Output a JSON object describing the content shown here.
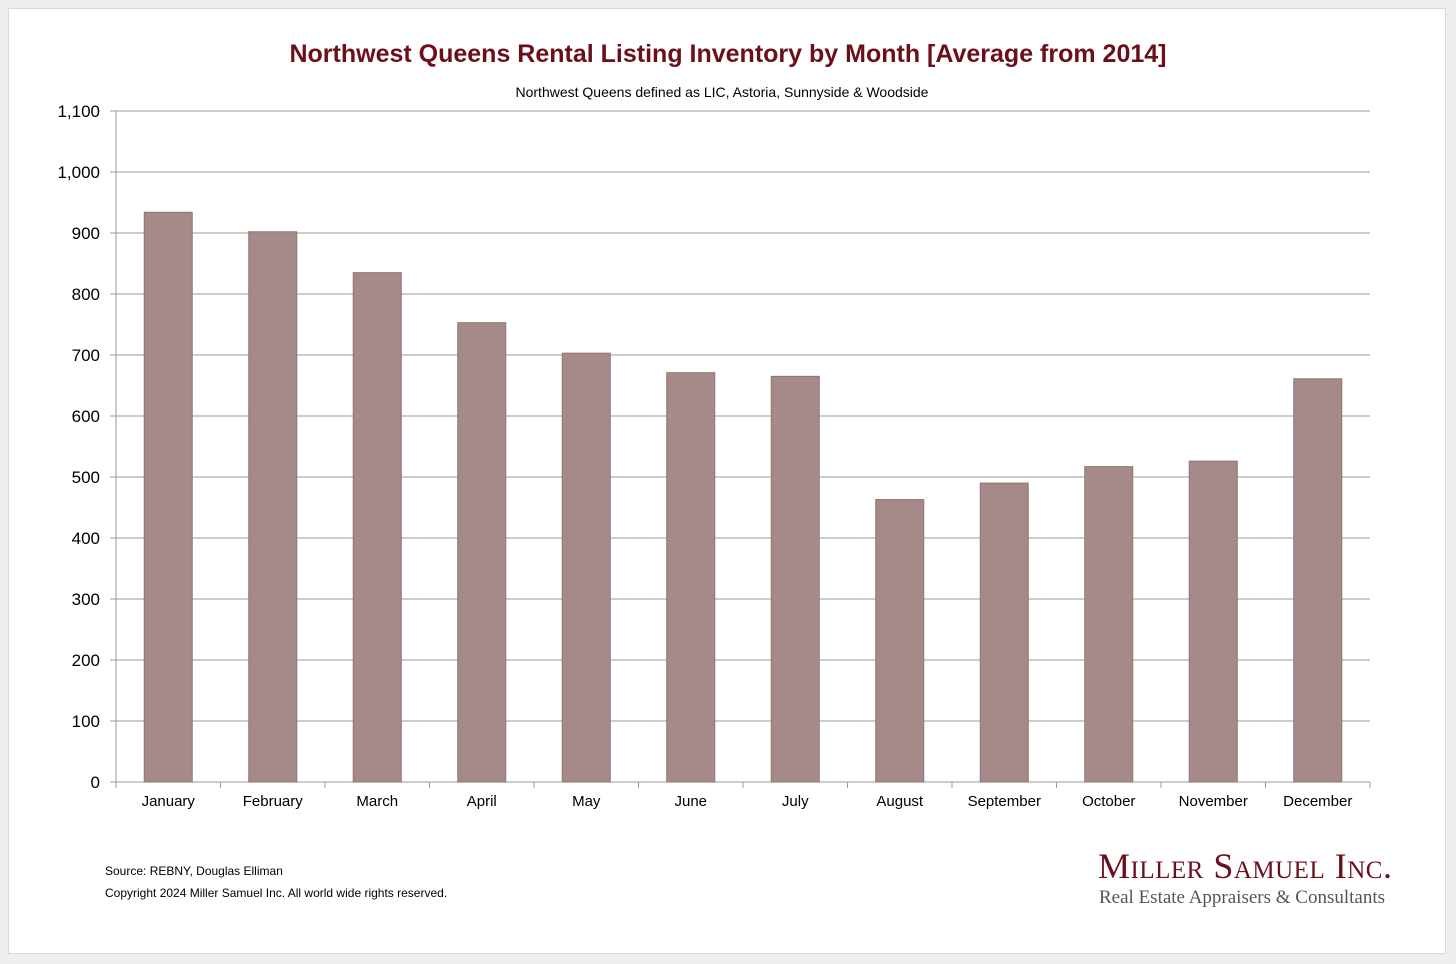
{
  "chart_data": {
    "type": "bar",
    "title": "Northwest Queens Rental Listing Inventory by Month [Average from 2014]",
    "subtitle": "Northwest Queens defined as LIC, Astoria, Sunnyside & Woodside",
    "xlabel": "",
    "ylabel": "",
    "categories": [
      "January",
      "February",
      "March",
      "April",
      "May",
      "June",
      "July",
      "August",
      "September",
      "October",
      "November",
      "December"
    ],
    "values": [
      934,
      902,
      835,
      753,
      703,
      671,
      665,
      463,
      490,
      517,
      526,
      661
    ],
    "ylim": [
      0,
      1100
    ],
    "yticks": [
      0,
      100,
      200,
      300,
      400,
      500,
      600,
      700,
      800,
      900,
      1000,
      1100
    ],
    "ytick_labels": [
      "0",
      "100",
      "200",
      "300",
      "400",
      "500",
      "600",
      "700",
      "800",
      "900",
      "1,000",
      "1,100"
    ],
    "grid": true,
    "legend": "none",
    "colors": {
      "bar": "#a68a8a",
      "bar_edge": "#8f7474",
      "grid": "#9a9a9a",
      "title": "#6b0f1a"
    }
  },
  "footer": {
    "source": "Source: REBNY, Douglas Elliman",
    "copyright": "Copyright 2024 Miller Samuel Inc.  All world wide rights reserved."
  },
  "logo": {
    "name": "Miller Samuel Inc.",
    "tagline": "Real Estate Appraisers & Consultants"
  }
}
